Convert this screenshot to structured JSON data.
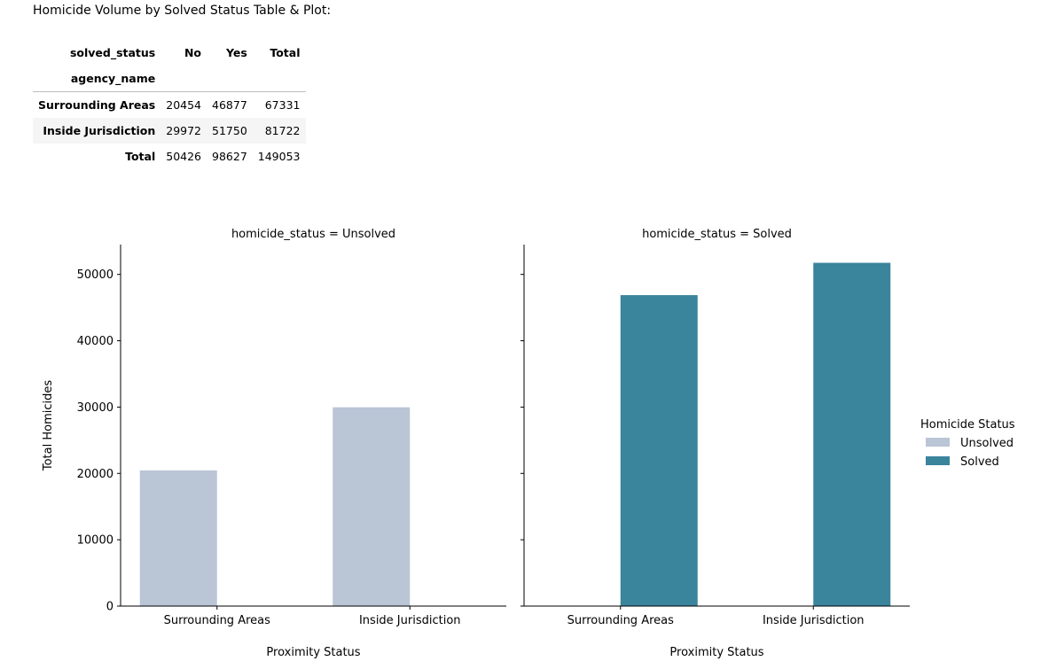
{
  "heading": "Homicide Volume by Solved Status Table & Plot:",
  "table": {
    "columns_name": "solved_status",
    "index_name": "agency_name",
    "columns": [
      "No",
      "Yes",
      "Total"
    ],
    "rows": [
      {
        "label": "Surrounding Areas",
        "cells": [
          "20454",
          "46877",
          "67331"
        ]
      },
      {
        "label": "Inside Jurisdiction",
        "cells": [
          "29972",
          "51750",
          "81722"
        ]
      },
      {
        "label": "Total",
        "cells": [
          "50426",
          "98627",
          "149053"
        ]
      }
    ]
  },
  "chart_data": {
    "type": "bar",
    "categories": [
      "Surrounding Areas",
      "Inside Jurisdiction"
    ],
    "hue_order": [
      "Unsolved",
      "Solved"
    ],
    "panels": [
      {
        "title": "homicide_status = Unsolved",
        "hue": "Unsolved",
        "values": [
          20454,
          29972
        ]
      },
      {
        "title": "homicide_status = Solved",
        "hue": "Solved",
        "values": [
          46877,
          51750
        ]
      }
    ],
    "xlabel": "Proximity Status",
    "ylabel": "Total Homicides",
    "ylim": [
      0,
      54500
    ],
    "yticks": [
      0,
      10000,
      20000,
      30000,
      40000,
      50000
    ],
    "legend": {
      "title": "Homicide Status",
      "placement": "right",
      "entries": [
        {
          "label": "Unsolved",
          "color": "#bac5d6"
        },
        {
          "label": "Solved",
          "color": "#3a849c"
        }
      ]
    },
    "grid": false
  }
}
